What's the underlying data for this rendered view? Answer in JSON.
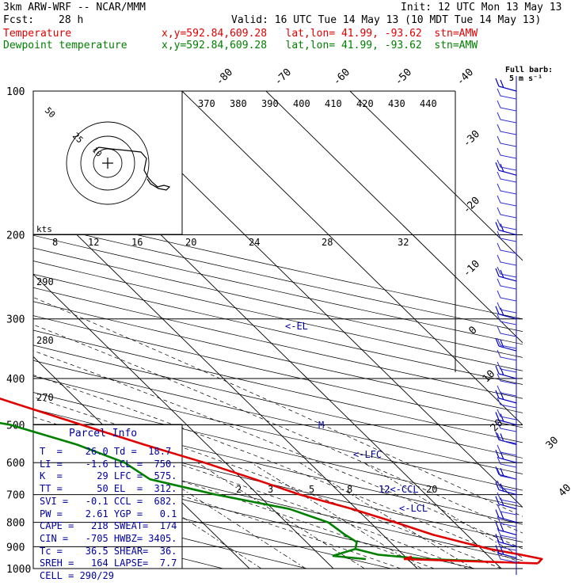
{
  "header": {
    "model": "3km ARW-WRF -- NCAR/MMM",
    "init": "Init: 12 UTC Mon 13 May 13",
    "fcst_label": "Fcst:",
    "fcst_value": "28 h",
    "valid": "Valid: 16 UTC Tue 14 May 13 (10 MDT Tue 14 May 13)",
    "temp_label": "Temperature",
    "dew_label": "Dewpoint temperature",
    "location": "x,y=592.84,609.28   lat,lon= 41.99, -93.62  stn=AMW",
    "barb_title_1": "Full barb:",
    "barb_title_2": "5 m s⁻¹"
  },
  "colors": {
    "temperature": "#e00000",
    "dewpoint": "#008000",
    "annotation": "#0000a0",
    "grid": "#000000"
  },
  "chart_data": {
    "type": "line",
    "title": "",
    "pressure_levels": [
      "100",
      "200",
      "300",
      "400",
      "500",
      "600",
      "700",
      "800",
      "900",
      "1000"
    ],
    "isotherm_labels": [
      "-80",
      "-70",
      "-60",
      "-50",
      "-40",
      "-30",
      "-20",
      "-10",
      "0",
      "10",
      "20",
      "30",
      "40"
    ],
    "theta_labels": [
      "370",
      "380",
      "390",
      "400",
      "410",
      "420",
      "430",
      "440"
    ],
    "dry_adiabat_labels": [
      "290",
      "280",
      "270"
    ],
    "mixing_ratio_labels": [
      "2",
      "3",
      "5",
      "8",
      "12",
      "20"
    ],
    "hodograph": {
      "ring_labels": [
        "50",
        "25",
        "10"
      ],
      "units": "kts"
    },
    "wind_speed_labels": [
      "8",
      "12",
      "16",
      "20",
      "24",
      "28",
      "32"
    ],
    "annotations": [
      "<-EL",
      "<-LFC",
      "12<-CCL",
      "<-LCL",
      "M"
    ],
    "series": [
      {
        "name": "Temperature",
        "color": "#e00000",
        "p": [
          975,
          955,
          935,
          910,
          880,
          850,
          800,
          750,
          700,
          650,
          600,
          550,
          500,
          450,
          400,
          350,
          300,
          270,
          250,
          225,
          200,
          180,
          160,
          140,
          125,
          110,
          100
        ],
        "t": [
          25.0,
          26.0,
          24.0,
          21.0,
          18.5,
          16.0,
          13.0,
          9.5,
          5.0,
          1.5,
          -2.5,
          -7.5,
          -12.5,
          -18.0,
          -24.0,
          -30.5,
          -37.5,
          -42.0,
          -45.5,
          -50.0,
          -54.5,
          -58.0,
          -60.0,
          -59.0,
          -58.0,
          -57.5,
          -56.0
        ]
      },
      {
        "name": "Dewpoint temperature",
        "color": "#008000",
        "p": [
          965,
          955,
          935,
          910,
          880,
          850,
          800,
          750,
          700,
          650,
          600,
          550,
          500,
          450,
          400,
          380,
          350,
          300,
          270,
          250,
          225,
          200,
          180,
          160,
          140,
          125,
          110,
          100
        ],
        "td": [
          18.7,
          12.0,
          7.0,
          5.0,
          6.0,
          5.5,
          5.0,
          2.0,
          -5.0,
          -11.0,
          -12.0,
          -15.5,
          -21.0,
          -33.0,
          -47.0,
          -47.0,
          -45.0,
          -44.5,
          -47.0,
          -51.0,
          -58.0,
          -65.0,
          -72.0,
          -80.0,
          -85.0,
          -87.0,
          -90.0,
          -92.0
        ]
      }
    ],
    "wind_barbs_p": [
      950,
      900,
      850,
      800,
      750,
      700,
      650,
      600,
      550,
      500,
      450,
      400,
      350,
      300,
      250,
      200,
      150,
      100
    ]
  },
  "parcel": {
    "title": "Parcel Info",
    "rows": [
      "T  =    26.0 Td =  18.7",
      "LI =    -1.6 LCL =  750.",
      "K  =      29 LFC =  575.",
      "TT =      50 EL  =  312.",
      "SVI =   -0.1 CCL =  682.",
      "PW =    2.61 YGP =   0.1",
      "CAPE =   218 SWEAT=  174",
      "CIN =   -705 HWBZ= 3405.",
      "Tc =    36.5 SHEAR=  36.",
      "SREH =   164 LAPSE=  7.7",
      "CELL = 290/29"
    ]
  }
}
